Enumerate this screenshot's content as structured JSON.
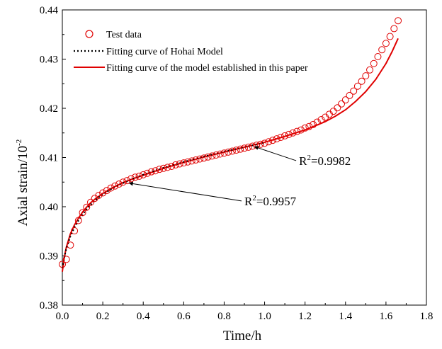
{
  "chart_data": {
    "type": "scatter",
    "xlabel": "Time/h",
    "ylabel": "Axial strain/10",
    "ylabel_exponent": "-2",
    "xlim": [
      0.0,
      1.8
    ],
    "ylim": [
      0.38,
      0.44
    ],
    "x_ticks": [
      "0.0",
      "0.2",
      "0.4",
      "0.6",
      "0.8",
      "1.0",
      "1.2",
      "1.4",
      "1.6",
      "1.8"
    ],
    "y_ticks": [
      "0.38",
      "0.39",
      "0.40",
      "0.41",
      "0.42",
      "0.43",
      "0.44"
    ],
    "grid": false,
    "legend_position": "top-left",
    "colors": {
      "test": "#e00000",
      "hohai": "#000000",
      "model": "#e00000"
    },
    "legend": [
      {
        "label": "Test data",
        "marker": "open-circle"
      },
      {
        "label": "Fitting curve of Hohai Model",
        "marker": "dotted-line"
      },
      {
        "label": "Fitting curve of the model established in this paper",
        "marker": "solid-line"
      }
    ],
    "annotations": [
      {
        "base": "R",
        "sup": "2",
        "rest": "=0.9957",
        "text_at": [
          0.9,
          0.4003
        ],
        "arrow_to": [
          0.33,
          0.4048
        ]
      },
      {
        "base": "R",
        "sup": "2",
        "rest": "=0.9982",
        "text_at": [
          1.17,
          0.4085
        ],
        "arrow_to": [
          0.95,
          0.4122
        ]
      }
    ],
    "series": [
      {
        "name": "Test data",
        "kind": "scatter",
        "x": [
          0.0,
          0.02,
          0.04,
          0.06,
          0.08,
          0.1,
          0.12,
          0.14,
          0.16,
          0.18,
          0.2,
          0.22,
          0.24,
          0.26,
          0.28,
          0.3,
          0.32,
          0.34,
          0.36,
          0.38,
          0.4,
          0.42,
          0.44,
          0.46,
          0.48,
          0.5,
          0.52,
          0.54,
          0.56,
          0.58,
          0.6,
          0.62,
          0.64,
          0.66,
          0.68,
          0.7,
          0.72,
          0.74,
          0.76,
          0.78,
          0.8,
          0.82,
          0.84,
          0.86,
          0.88,
          0.9,
          0.92,
          0.94,
          0.96,
          0.98,
          1.0,
          1.02,
          1.04,
          1.06,
          1.08,
          1.1,
          1.12,
          1.14,
          1.16,
          1.18,
          1.2,
          1.22,
          1.24,
          1.26,
          1.28,
          1.3,
          1.32,
          1.34,
          1.36,
          1.38,
          1.4,
          1.42,
          1.44,
          1.46,
          1.48,
          1.5,
          1.52,
          1.54,
          1.56,
          1.58,
          1.6,
          1.62,
          1.64,
          1.66
        ],
        "y": [
          0.3883,
          0.3893,
          0.3922,
          0.3951,
          0.3972,
          0.3988,
          0.3999,
          0.4009,
          0.4017,
          0.4023,
          0.4028,
          0.4033,
          0.4038,
          0.4042,
          0.4046,
          0.405,
          0.4053,
          0.4057,
          0.406,
          0.4062,
          0.4065,
          0.4068,
          0.4071,
          0.4073,
          0.4076,
          0.4078,
          0.408,
          0.4082,
          0.4085,
          0.4087,
          0.4089,
          0.4091,
          0.4093,
          0.4095,
          0.4097,
          0.4099,
          0.4101,
          0.4103,
          0.4105,
          0.4107,
          0.4109,
          0.4111,
          0.4113,
          0.4115,
          0.4117,
          0.4119,
          0.4121,
          0.4123,
          0.4125,
          0.4127,
          0.4129,
          0.4132,
          0.4135,
          0.4138,
          0.4141,
          0.4144,
          0.4147,
          0.415,
          0.4153,
          0.4156,
          0.416,
          0.4163,
          0.4167,
          0.4172,
          0.4177,
          0.4182,
          0.4188,
          0.4194,
          0.4201,
          0.4209,
          0.4217,
          0.4226,
          0.4235,
          0.4245,
          0.4255,
          0.4266,
          0.4278,
          0.4291,
          0.4305,
          0.4319,
          0.4332,
          0.4346,
          0.4362,
          0.4378
        ]
      },
      {
        "name": "Fitting curve of Hohai Model",
        "kind": "line",
        "x": [
          0.0,
          0.01,
          0.02,
          0.04,
          0.06,
          0.08,
          0.1,
          0.12,
          0.14,
          0.16,
          0.18,
          0.2,
          0.25,
          0.3,
          0.35,
          0.4,
          0.5,
          0.6,
          0.7,
          0.8,
          0.9,
          1.0
        ],
        "y": [
          0.3875,
          0.3898,
          0.3915,
          0.394,
          0.3958,
          0.3972,
          0.3984,
          0.3995,
          0.4004,
          0.4012,
          0.4019,
          0.4025,
          0.4038,
          0.4048,
          0.4057,
          0.4065,
          0.4079,
          0.4091,
          0.4102,
          0.4112,
          0.4121,
          0.413
        ]
      },
      {
        "name": "Fitting curve of the model established in this paper",
        "kind": "line",
        "x": [
          0.0,
          0.01,
          0.02,
          0.04,
          0.06,
          0.08,
          0.1,
          0.12,
          0.14,
          0.16,
          0.18,
          0.2,
          0.25,
          0.3,
          0.35,
          0.4,
          0.5,
          0.6,
          0.7,
          0.8,
          0.9,
          1.0,
          1.1,
          1.2,
          1.3,
          1.35,
          1.4,
          1.45,
          1.5,
          1.55,
          1.6,
          1.63,
          1.66
        ],
        "y": [
          0.3868,
          0.3898,
          0.3918,
          0.3945,
          0.3963,
          0.3977,
          0.3989,
          0.3999,
          0.4008,
          0.4015,
          0.4021,
          0.4027,
          0.4039,
          0.4049,
          0.4057,
          0.4064,
          0.4078,
          0.409,
          0.4101,
          0.4111,
          0.4121,
          0.4131,
          0.4143,
          0.4156,
          0.4173,
          0.4184,
          0.4197,
          0.4214,
          0.4234,
          0.4259,
          0.4291,
          0.4315,
          0.4342
        ]
      }
    ]
  }
}
